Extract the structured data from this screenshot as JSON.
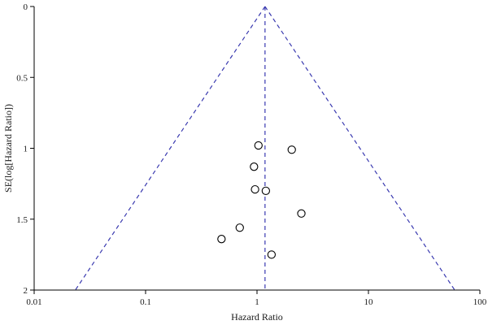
{
  "chart_data": {
    "type": "scatter",
    "title": "",
    "xlabel": "Hazard Ratio",
    "ylabel": "SE(log[Hazard Ratio])",
    "x_scale": "log",
    "x_ticks": [
      0.01,
      0.1,
      1,
      10,
      100
    ],
    "x_tick_labels": [
      "0.01",
      "0.1",
      "1",
      "10",
      "100"
    ],
    "xlim": [
      0.01,
      100
    ],
    "y_inverted": true,
    "y_ticks": [
      0,
      0.5,
      1,
      1.5,
      2
    ],
    "y_tick_labels": [
      "0",
      "0.5",
      "1",
      "1.5",
      "2"
    ],
    "ylim": [
      0,
      2
    ],
    "pooled_hazard_ratio": 1.18,
    "funnel_limits": "pooled estimate ± 1.96 × SE",
    "points": [
      {
        "x": 1.03,
        "y": 0.98
      },
      {
        "x": 2.05,
        "y": 1.01
      },
      {
        "x": 0.94,
        "y": 1.13
      },
      {
        "x": 0.96,
        "y": 1.29
      },
      {
        "x": 1.2,
        "y": 1.3
      },
      {
        "x": 2.5,
        "y": 1.46
      },
      {
        "x": 0.7,
        "y": 1.56
      },
      {
        "x": 0.48,
        "y": 1.64
      },
      {
        "x": 1.35,
        "y": 1.75
      }
    ],
    "grid": false,
    "legend": "none",
    "colors": {
      "funnel": "#3a3ab0",
      "points": "#000000",
      "axes": "#000000"
    }
  }
}
